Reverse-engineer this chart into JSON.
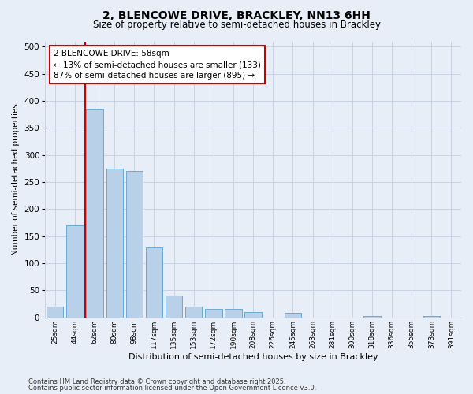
{
  "title_line1": "2, BLENCOWE DRIVE, BRACKLEY, NN13 6HH",
  "title_line2": "Size of property relative to semi-detached houses in Brackley",
  "xlabel": "Distribution of semi-detached houses by size in Brackley",
  "ylabel": "Number of semi-detached properties",
  "categories": [
    "25sqm",
    "44sqm",
    "62sqm",
    "80sqm",
    "98sqm",
    "117sqm",
    "135sqm",
    "153sqm",
    "172sqm",
    "190sqm",
    "208sqm",
    "226sqm",
    "245sqm",
    "263sqm",
    "281sqm",
    "300sqm",
    "318sqm",
    "336sqm",
    "355sqm",
    "373sqm",
    "391sqm"
  ],
  "values": [
    20,
    170,
    385,
    275,
    270,
    130,
    40,
    20,
    15,
    15,
    10,
    0,
    8,
    0,
    0,
    0,
    3,
    0,
    0,
    3,
    0
  ],
  "bar_color": "#b8d0e8",
  "bar_edge_color": "#6aaad4",
  "annotation_text_line1": "2 BLENCOWE DRIVE: 58sqm",
  "annotation_text_line2": "← 13% of semi-detached houses are smaller (133)",
  "annotation_text_line3": "87% of semi-detached houses are larger (895) →",
  "ylim": [
    0,
    510
  ],
  "yticks": [
    0,
    50,
    100,
    150,
    200,
    250,
    300,
    350,
    400,
    450,
    500
  ],
  "footer_line1": "Contains HM Land Registry data © Crown copyright and database right 2025.",
  "footer_line2": "Contains public sector information licensed under the Open Government Licence v3.0.",
  "bg_color": "#e8eef7",
  "plot_bg_color": "#e8eef7",
  "annotation_box_color": "#ffffff",
  "annotation_box_edge": "#cc0000",
  "red_line_color": "#cc0000",
  "grid_color": "#c8d4e4"
}
